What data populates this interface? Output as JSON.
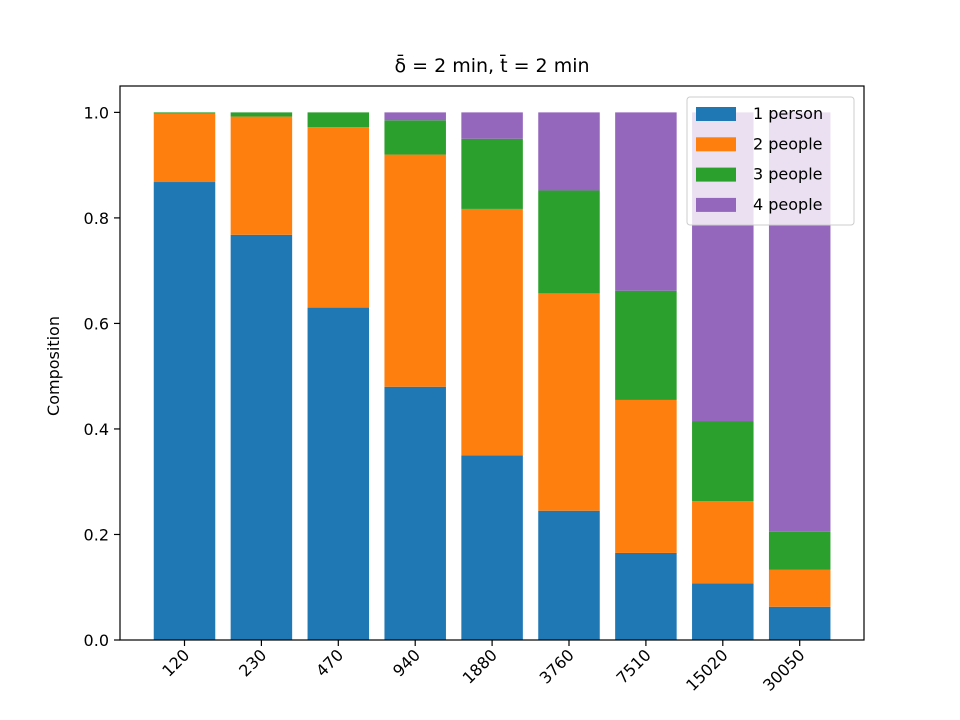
{
  "chart_data": {
    "type": "bar",
    "stacked": true,
    "title": "δ̄ = 2 min, t̄ = 2 min",
    "xlabel": "",
    "ylabel": "Composition",
    "ylim": [
      0,
      1.05
    ],
    "yticks": [
      "0.0",
      "0.2",
      "0.4",
      "0.6",
      "0.8",
      "1.0"
    ],
    "categories": [
      "120",
      "230",
      "470",
      "940",
      "1880",
      "3760",
      "7510",
      "15020",
      "30050"
    ],
    "grid": false,
    "legend_position": "top-right",
    "series": [
      {
        "name": "1 person",
        "color": "#1f77b4",
        "values": [
          0.868,
          0.768,
          0.63,
          0.48,
          0.35,
          0.245,
          0.165,
          0.107,
          0.063
        ]
      },
      {
        "name": "2 people",
        "color": "#ff7f0e",
        "values": [
          0.13,
          0.224,
          0.342,
          0.44,
          0.467,
          0.412,
          0.29,
          0.156,
          0.07
        ]
      },
      {
        "name": "3 people",
        "color": "#2ca02c",
        "values": [
          0.002,
          0.008,
          0.028,
          0.065,
          0.133,
          0.195,
          0.207,
          0.152,
          0.072
        ]
      },
      {
        "name": "4 people",
        "color": "#9467bd",
        "values": [
          0.0,
          0.0,
          0.0,
          0.015,
          0.05,
          0.148,
          0.338,
          0.585,
          0.795
        ]
      }
    ]
  }
}
